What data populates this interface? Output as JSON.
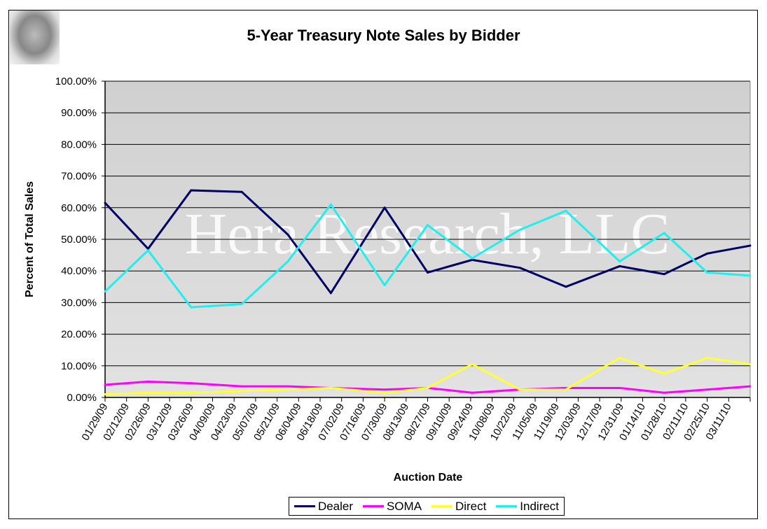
{
  "chart_data": {
    "type": "line",
    "title": "5-Year Treasury Note Sales by Bidder",
    "xlabel": "Auction Date",
    "ylabel": "Percent of Total Sales",
    "watermark": "Hera Research, LLC",
    "ylim": [
      0,
      100
    ],
    "yticks": [
      "0.00%",
      "10.00%",
      "20.00%",
      "30.00%",
      "40.00%",
      "50.00%",
      "60.00%",
      "70.00%",
      "80.00%",
      "90.00%",
      "100.00%"
    ],
    "xticks": [
      "01/29/09",
      "02/12/09",
      "02/26/09",
      "03/12/09",
      "03/26/09",
      "04/09/09",
      "04/23/09",
      "05/07/09",
      "05/21/09",
      "06/04/09",
      "06/18/09",
      "07/02/09",
      "07/16/09",
      "07/30/09",
      "08/13/09",
      "08/27/09",
      "09/10/09",
      "09/24/09",
      "10/08/09",
      "10/22/09",
      "11/05/09",
      "11/19/09",
      "12/03/09",
      "12/17/09",
      "12/31/09",
      "01/14/10",
      "01/28/10",
      "02/11/10",
      "02/25/10",
      "03/11/10"
    ],
    "xlim_days_from_start": [
      0,
      420
    ],
    "x_days_from_start": [
      0,
      28,
      56,
      89,
      119,
      147,
      182,
      210,
      239,
      270,
      300,
      335,
      364,
      392,
      420
    ],
    "grid": true,
    "legend_position": "bottom",
    "series": [
      {
        "name": "Dealer",
        "color": "#000066",
        "values": [
          61.5,
          47,
          65.5,
          65,
          51.5,
          33,
          60,
          39.5,
          43.5,
          41,
          35,
          41.5,
          39,
          45.5,
          48
        ]
      },
      {
        "name": "SOMA",
        "color": "#ff00ff",
        "values": [
          4,
          5,
          4.5,
          3.5,
          3.5,
          3,
          2.5,
          3,
          1.5,
          2.5,
          3,
          3,
          1.5,
          2.5,
          3.5
        ]
      },
      {
        "name": "Direct",
        "color": "#ffff33",
        "values": [
          1,
          1.5,
          1.5,
          2,
          2.5,
          3,
          1.5,
          3,
          10.5,
          2.5,
          2.5,
          12.5,
          7.5,
          12.5,
          10.5
        ]
      },
      {
        "name": "Indirect",
        "color": "#22eeee",
        "values": [
          33.5,
          46.5,
          28.5,
          29.5,
          43,
          61,
          35.5,
          54.5,
          44,
          53,
          59,
          43,
          52,
          39.5,
          38.5
        ]
      }
    ]
  }
}
